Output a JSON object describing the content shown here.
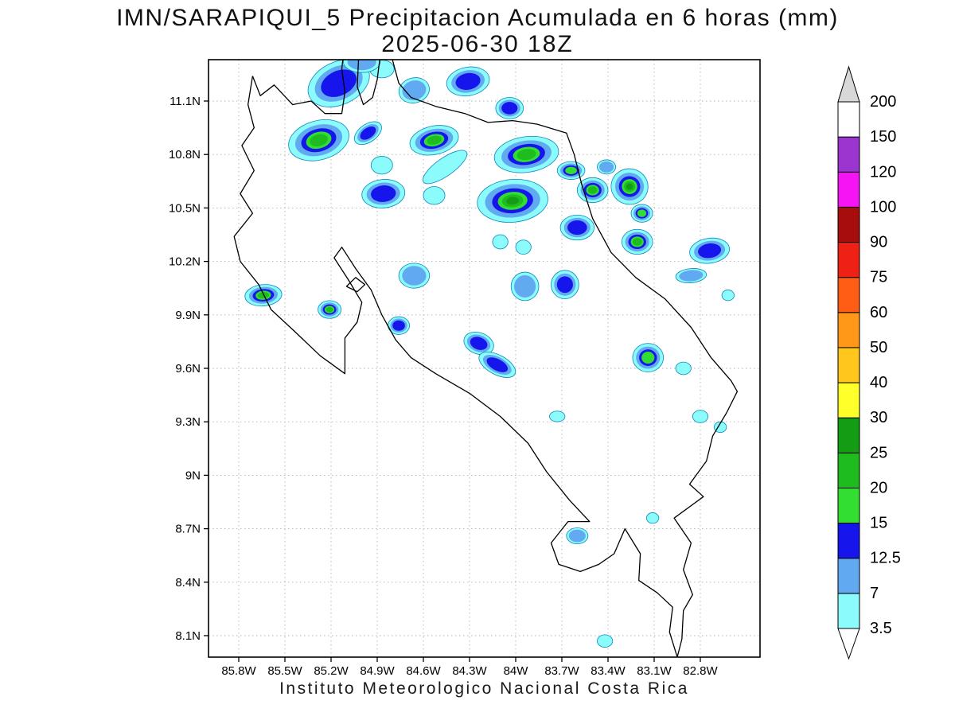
{
  "title": {
    "line1": "IMN/SARAPIQUI_5 Precipitacion Acumulada en 6 horas (mm)",
    "line2": "2025-06-30 18Z"
  },
  "caption": "Instituto Meteorologico Nacional Costa Rica",
  "chart_data": {
    "type": "heatmap",
    "title": "IMN/SARAPIQUI_5 Precipitacion Acumulada en 6 horas (mm)",
    "valid_time": "2025-06-30 18Z",
    "units": "mm",
    "source": "Instituto Meteorologico Nacional Costa Rica",
    "grid": true,
    "legend_position": "right",
    "lon_range_degW": [
      86.0,
      82.42
    ],
    "lat_range_degN": [
      7.98,
      11.33
    ],
    "lat_ticks": [
      {
        "label": "11.1N",
        "deg": 11.1
      },
      {
        "label": "10.8N",
        "deg": 10.8
      },
      {
        "label": "10.5N",
        "deg": 10.5
      },
      {
        "label": "10.2N",
        "deg": 10.2
      },
      {
        "label": "9.9N",
        "deg": 9.9
      },
      {
        "label": "9.6N",
        "deg": 9.6
      },
      {
        "label": "9.3N",
        "deg": 9.3
      },
      {
        "label": "9N",
        "deg": 9.0
      },
      {
        "label": "8.7N",
        "deg": 8.7
      },
      {
        "label": "8.4N",
        "deg": 8.4
      },
      {
        "label": "8.1N",
        "deg": 8.1
      }
    ],
    "lon_ticks": [
      {
        "label": "85.8W",
        "deg": 85.8
      },
      {
        "label": "85.5W",
        "deg": 85.5
      },
      {
        "label": "85.2W",
        "deg": 85.2
      },
      {
        "label": "84.9W",
        "deg": 84.9
      },
      {
        "label": "84.6W",
        "deg": 84.6
      },
      {
        "label": "84.3W",
        "deg": 84.3
      },
      {
        "label": "84W",
        "deg": 84.0
      },
      {
        "label": "83.7W",
        "deg": 83.7
      },
      {
        "label": "83.4W",
        "deg": 83.4
      },
      {
        "label": "83.1W",
        "deg": 83.1
      },
      {
        "label": "82.8W",
        "deg": 82.8
      }
    ],
    "colorbar": {
      "boundaries": [
        3.5,
        7,
        12.5,
        15,
        20,
        25,
        30,
        40,
        50,
        60,
        75,
        90,
        100,
        120,
        150,
        200
      ],
      "boundary_labels": [
        "3.5",
        "7",
        "12.5",
        "15",
        "20",
        "25",
        "30",
        "40",
        "50",
        "60",
        "75",
        "90",
        "100",
        "120",
        "150",
        "200"
      ],
      "segment_colors": [
        "#8CFBFB",
        "#61AAF2",
        "#1616EC",
        "#33DE33",
        "#1FBC1F",
        "#149C14",
        "#FFFF29",
        "#FFC61B",
        "#FF9819",
        "#FF5C16",
        "#EF2114",
        "#A80D0D",
        "#F414F4",
        "#9C34D0",
        "#FFFFFF"
      ],
      "above_max_color": "#D8D8D8",
      "below_min_color": "#FFFFFF"
    },
    "blob_levels": [
      3.5,
      7,
      12.5,
      15,
      20,
      25
    ],
    "features": [
      {
        "lonW": 85.15,
        "lat": 11.2,
        "rx": 0.21,
        "ry": 0.12,
        "rot": -25,
        "max_mm": 12.5
      },
      {
        "lonW": 84.87,
        "lat": 11.28,
        "rx": 0.08,
        "ry": 0.05,
        "rot": 0,
        "max_mm": 3.5
      },
      {
        "lonW": 84.66,
        "lat": 11.16,
        "rx": 0.1,
        "ry": 0.07,
        "rot": -15,
        "max_mm": 7
      },
      {
        "lonW": 84.31,
        "lat": 11.21,
        "rx": 0.14,
        "ry": 0.08,
        "rot": -10,
        "max_mm": 12.5
      },
      {
        "lonW": 84.04,
        "lat": 11.06,
        "rx": 0.09,
        "ry": 0.06,
        "rot": 0,
        "max_mm": 12.5
      },
      {
        "lonW": 85.0,
        "lat": 11.32,
        "rx": 0.12,
        "ry": 0.06,
        "rot": 0,
        "max_mm": 7
      },
      {
        "lonW": 85.28,
        "lat": 10.88,
        "rx": 0.2,
        "ry": 0.11,
        "rot": -15,
        "max_mm": 20
      },
      {
        "lonW": 84.96,
        "lat": 10.92,
        "rx": 0.1,
        "ry": 0.05,
        "rot": -35,
        "max_mm": 12.5
      },
      {
        "lonW": 84.53,
        "lat": 10.88,
        "rx": 0.16,
        "ry": 0.08,
        "rot": -12,
        "max_mm": 20
      },
      {
        "lonW": 83.93,
        "lat": 10.8,
        "rx": 0.21,
        "ry": 0.1,
        "rot": -8,
        "max_mm": 20
      },
      {
        "lonW": 83.64,
        "lat": 10.71,
        "rx": 0.09,
        "ry": 0.05,
        "rot": 0,
        "max_mm": 15
      },
      {
        "lonW": 84.46,
        "lat": 10.73,
        "rx": 0.17,
        "ry": 0.05,
        "rot": -35,
        "max_mm": 3.5
      },
      {
        "lonW": 84.87,
        "lat": 10.74,
        "rx": 0.07,
        "ry": 0.05,
        "rot": 0,
        "max_mm": 3.5
      },
      {
        "lonW": 84.86,
        "lat": 10.58,
        "rx": 0.14,
        "ry": 0.08,
        "rot": -5,
        "max_mm": 12.5
      },
      {
        "lonW": 84.53,
        "lat": 10.57,
        "rx": 0.07,
        "ry": 0.05,
        "rot": 0,
        "max_mm": 3.5
      },
      {
        "lonW": 84.02,
        "lat": 10.54,
        "rx": 0.23,
        "ry": 0.12,
        "rot": -5,
        "max_mm": 25
      },
      {
        "lonW": 83.5,
        "lat": 10.6,
        "rx": 0.1,
        "ry": 0.07,
        "rot": 0,
        "max_mm": 20
      },
      {
        "lonW": 83.26,
        "lat": 10.62,
        "rx": 0.12,
        "ry": 0.1,
        "rot": 10,
        "max_mm": 25
      },
      {
        "lonW": 83.41,
        "lat": 10.73,
        "rx": 0.06,
        "ry": 0.04,
        "rot": 0,
        "max_mm": 7
      },
      {
        "lonW": 83.18,
        "lat": 10.47,
        "rx": 0.07,
        "ry": 0.05,
        "rot": 0,
        "max_mm": 15
      },
      {
        "lonW": 83.6,
        "lat": 10.39,
        "rx": 0.11,
        "ry": 0.07,
        "rot": 0,
        "max_mm": 12.5
      },
      {
        "lonW": 83.21,
        "lat": 10.31,
        "rx": 0.1,
        "ry": 0.07,
        "rot": 0,
        "max_mm": 20
      },
      {
        "lonW": 82.74,
        "lat": 10.26,
        "rx": 0.13,
        "ry": 0.07,
        "rot": -8,
        "max_mm": 12.5
      },
      {
        "lonW": 84.1,
        "lat": 10.31,
        "rx": 0.05,
        "ry": 0.04,
        "rot": 0,
        "max_mm": 3.5
      },
      {
        "lonW": 83.95,
        "lat": 10.28,
        "rx": 0.05,
        "ry": 0.04,
        "rot": 0,
        "max_mm": 3.5
      },
      {
        "lonW": 82.86,
        "lat": 10.12,
        "rx": 0.1,
        "ry": 0.04,
        "rot": -5,
        "max_mm": 7
      },
      {
        "lonW": 84.66,
        "lat": 10.12,
        "rx": 0.1,
        "ry": 0.07,
        "rot": 0,
        "max_mm": 7
      },
      {
        "lonW": 83.94,
        "lat": 10.06,
        "rx": 0.09,
        "ry": 0.08,
        "rot": 0,
        "max_mm": 7
      },
      {
        "lonW": 83.68,
        "lat": 10.07,
        "rx": 0.09,
        "ry": 0.08,
        "rot": 0,
        "max_mm": 12.5
      },
      {
        "lonW": 85.64,
        "lat": 10.01,
        "rx": 0.12,
        "ry": 0.06,
        "rot": -5,
        "max_mm": 20
      },
      {
        "lonW": 85.21,
        "lat": 9.93,
        "rx": 0.075,
        "ry": 0.05,
        "rot": 0,
        "max_mm": 20
      },
      {
        "lonW": 82.62,
        "lat": 10.01,
        "rx": 0.04,
        "ry": 0.03,
        "rot": 0,
        "max_mm": 3.5
      },
      {
        "lonW": 84.76,
        "lat": 9.84,
        "rx": 0.07,
        "ry": 0.05,
        "rot": 0,
        "max_mm": 12.5
      },
      {
        "lonW": 84.24,
        "lat": 9.74,
        "rx": 0.1,
        "ry": 0.06,
        "rot": 20,
        "max_mm": 12.5
      },
      {
        "lonW": 84.12,
        "lat": 9.62,
        "rx": 0.13,
        "ry": 0.055,
        "rot": 28,
        "max_mm": 12.5
      },
      {
        "lonW": 83.14,
        "lat": 9.66,
        "rx": 0.1,
        "ry": 0.08,
        "rot": 0,
        "max_mm": 15
      },
      {
        "lonW": 82.91,
        "lat": 9.6,
        "rx": 0.05,
        "ry": 0.035,
        "rot": 0,
        "max_mm": 3.5
      },
      {
        "lonW": 83.73,
        "lat": 9.33,
        "rx": 0.05,
        "ry": 0.03,
        "rot": 0,
        "max_mm": 3.5
      },
      {
        "lonW": 82.8,
        "lat": 9.33,
        "rx": 0.05,
        "ry": 0.035,
        "rot": 0,
        "max_mm": 3.5
      },
      {
        "lonW": 82.67,
        "lat": 9.27,
        "rx": 0.04,
        "ry": 0.03,
        "rot": 0,
        "max_mm": 3.5
      },
      {
        "lonW": 83.6,
        "lat": 8.66,
        "rx": 0.07,
        "ry": 0.045,
        "rot": 0,
        "max_mm": 7
      },
      {
        "lonW": 83.11,
        "lat": 8.76,
        "rx": 0.04,
        "ry": 0.03,
        "rot": 0,
        "max_mm": 3.5
      },
      {
        "lonW": 83.42,
        "lat": 8.07,
        "rx": 0.05,
        "ry": 0.035,
        "rot": 0,
        "max_mm": 3.5
      }
    ]
  }
}
